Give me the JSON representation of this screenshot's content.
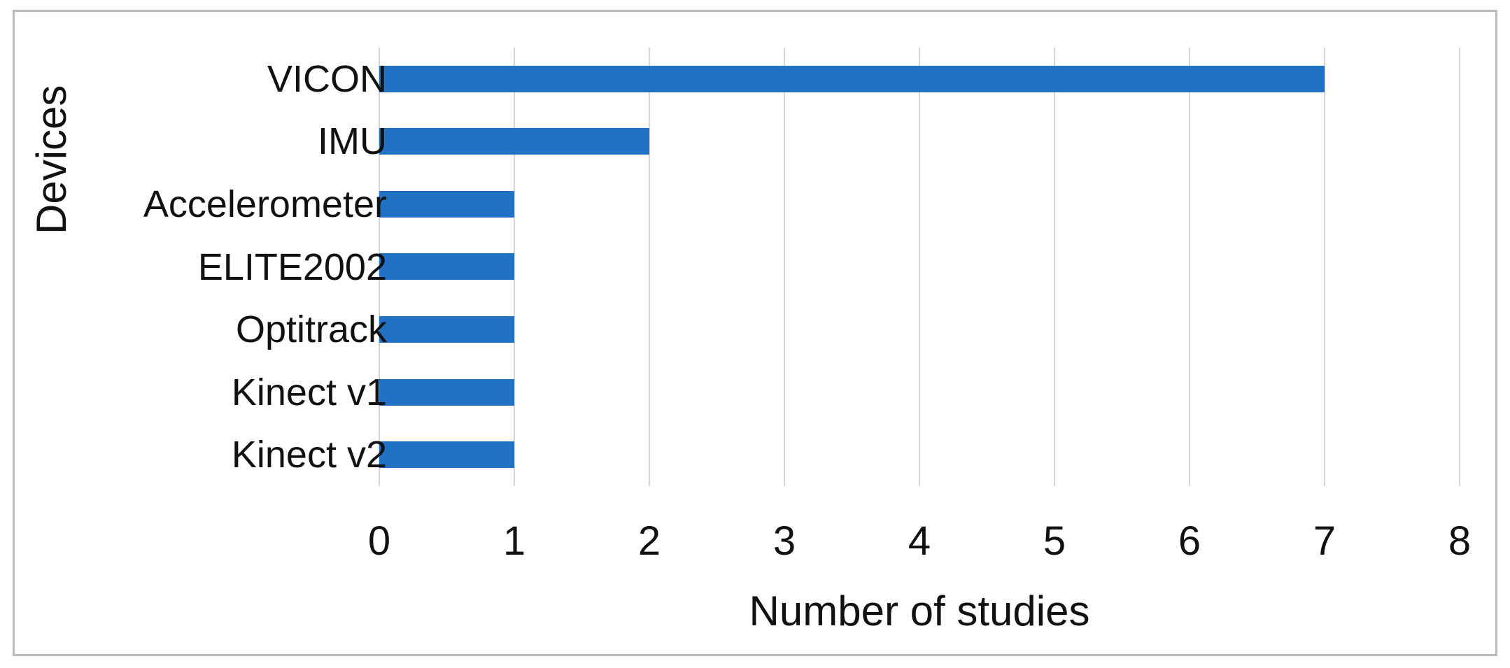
{
  "chart_data": {
    "type": "bar",
    "orientation": "horizontal",
    "categories": [
      "VICON",
      "IMU",
      "Accelerometer",
      "ELITE2002",
      "Optitrack",
      "Kinect v1",
      "Kinect v2"
    ],
    "values": [
      7,
      2,
      1,
      1,
      1,
      1,
      1
    ],
    "title": "",
    "xlabel": "Number of studies",
    "ylabel": "Devices",
    "xlim": [
      0,
      8
    ],
    "xticks": [
      0,
      1,
      2,
      3,
      4,
      5,
      6,
      7,
      8
    ],
    "grid": "vertical-only",
    "legend": "none",
    "bar_color": "#2171c4",
    "gridline_color": "#d6d6d6",
    "frame_border_color": "#b9bdc1",
    "text_color": "#111111"
  }
}
